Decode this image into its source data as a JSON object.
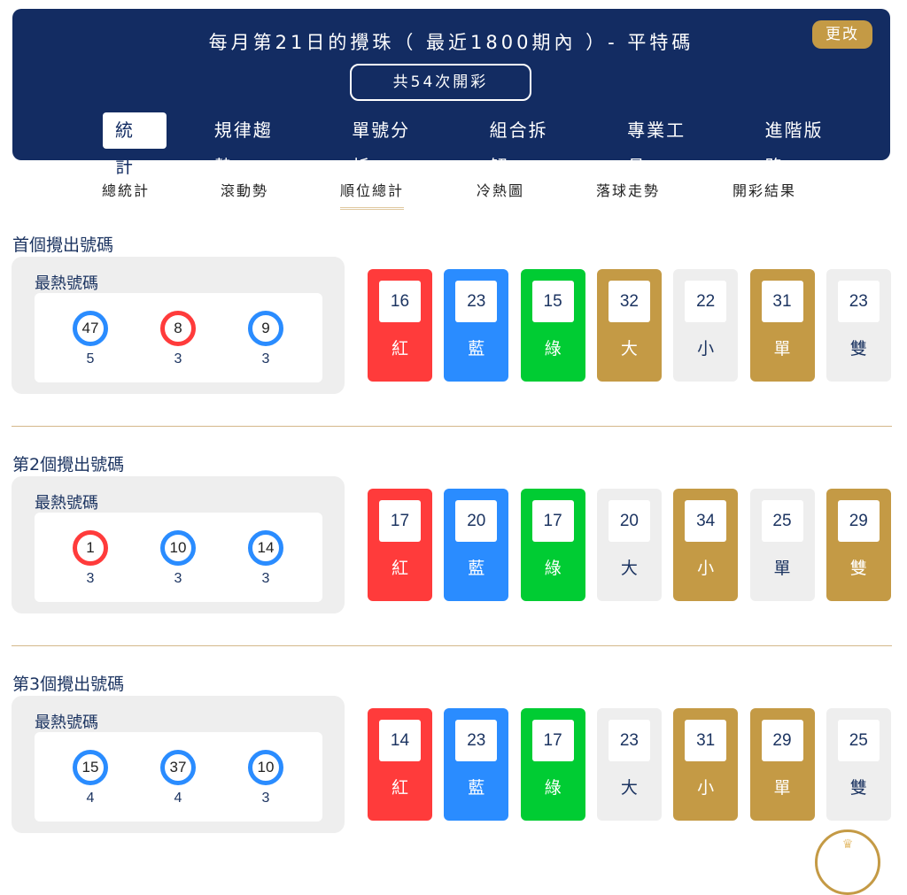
{
  "header": {
    "title": "每月第21日的攪珠（ 最近1800期內 ）- 平特碼",
    "change_label": "更改",
    "draw_count": "共54次開彩",
    "tabs": [
      "統計",
      "規律趨勢",
      "單號分析",
      "組合拆解",
      "專業工具",
      "進階版路"
    ],
    "active_tab": 0
  },
  "subtabs": {
    "items": [
      "總統計",
      "滾動勢",
      "順位總計",
      "冷熱圖",
      "落球走勢",
      "開彩結果"
    ],
    "active": 2
  },
  "colors": {
    "red": "#ff3b3b",
    "blue": "#2a8cff",
    "green": "#00cc33",
    "gold": "#c49a45",
    "light": "#eeeeee",
    "navy": "#132c62"
  },
  "sections": [
    {
      "title": "首個攪出號碼",
      "hot_label": "最熱號碼",
      "hot": [
        {
          "number": "47",
          "color": "blue",
          "count": "5"
        },
        {
          "number": "8",
          "color": "red",
          "count": "3"
        },
        {
          "number": "9",
          "color": "blue",
          "count": "3"
        }
      ],
      "stats": [
        {
          "value": "16",
          "label": "紅",
          "color": "red"
        },
        {
          "value": "23",
          "label": "藍",
          "color": "blue"
        },
        {
          "value": "15",
          "label": "綠",
          "color": "green"
        },
        {
          "value": "32",
          "label": "大",
          "color": "gold"
        },
        {
          "value": "22",
          "label": "小",
          "color": "light"
        },
        {
          "value": "31",
          "label": "單",
          "color": "gold"
        },
        {
          "value": "23",
          "label": "雙",
          "color": "light"
        }
      ]
    },
    {
      "title": "第2個攪出號碼",
      "hot_label": "最熱號碼",
      "hot": [
        {
          "number": "1",
          "color": "red",
          "count": "3"
        },
        {
          "number": "10",
          "color": "blue",
          "count": "3"
        },
        {
          "number": "14",
          "color": "blue",
          "count": "3"
        }
      ],
      "stats": [
        {
          "value": "17",
          "label": "紅",
          "color": "red"
        },
        {
          "value": "20",
          "label": "藍",
          "color": "blue"
        },
        {
          "value": "17",
          "label": "綠",
          "color": "green"
        },
        {
          "value": "20",
          "label": "大",
          "color": "light"
        },
        {
          "value": "34",
          "label": "小",
          "color": "gold"
        },
        {
          "value": "25",
          "label": "單",
          "color": "light"
        },
        {
          "value": "29",
          "label": "雙",
          "color": "gold"
        }
      ]
    },
    {
      "title": "第3個攪出號碼",
      "hot_label": "最熱號碼",
      "hot": [
        {
          "number": "15",
          "color": "blue",
          "count": "4"
        },
        {
          "number": "37",
          "color": "blue",
          "count": "4"
        },
        {
          "number": "10",
          "color": "blue",
          "count": "3"
        }
      ],
      "stats": [
        {
          "value": "14",
          "label": "紅",
          "color": "red"
        },
        {
          "value": "23",
          "label": "藍",
          "color": "blue"
        },
        {
          "value": "17",
          "label": "綠",
          "color": "green"
        },
        {
          "value": "23",
          "label": "大",
          "color": "light"
        },
        {
          "value": "31",
          "label": "小",
          "color": "gold"
        },
        {
          "value": "29",
          "label": "單",
          "color": "gold"
        },
        {
          "value": "25",
          "label": "雙",
          "color": "light"
        }
      ]
    }
  ]
}
